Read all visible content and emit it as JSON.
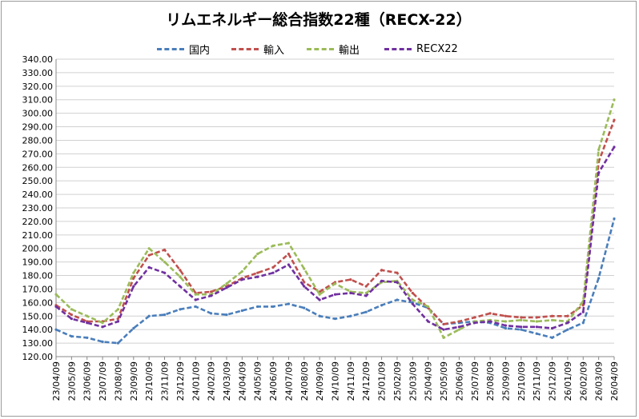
{
  "chart_data": {
    "type": "line",
    "title": "リムエネルギー総合指数22種（RECX-22）",
    "ylim": [
      120,
      340
    ],
    "yticks": [
      "120.00",
      "130.00",
      "140.00",
      "150.00",
      "160.00",
      "170.00",
      "180.00",
      "190.00",
      "200.00",
      "210.00",
      "220.00",
      "230.00",
      "240.00",
      "250.00",
      "260.00",
      "270.00",
      "280.00",
      "290.00",
      "300.00",
      "310.00",
      "320.00",
      "330.00",
      "340.00"
    ],
    "x_labels": [
      "23/04/09",
      "23/05/09",
      "23/06/09",
      "23/07/09",
      "23/08/09",
      "23/09/09",
      "23/10/09",
      "23/11/09",
      "23/12/09",
      "24/01/09",
      "24/02/09",
      "24/03/09",
      "24/04/09",
      "24/05/09",
      "24/06/09",
      "24/07/09",
      "24/08/09",
      "24/09/09",
      "24/10/09",
      "24/11/09",
      "24/12/09",
      "25/01/09",
      "25/02/09",
      "25/03/09",
      "25/04/09",
      "25/05/09",
      "25/06/09",
      "25/07/09",
      "25/08/09",
      "25/09/09",
      "25/10/09",
      "25/11/09",
      "25/12/09",
      "26/01/09",
      "26/02/09",
      "26/03/09",
      "26/04/09"
    ],
    "grid": true,
    "legend_position": "top",
    "series": [
      {
        "name": "国内",
        "color": "#4a7ebb",
        "values": [
          140,
          135,
          134,
          131,
          130,
          141,
          150,
          151,
          155,
          157,
          152,
          151,
          154,
          157,
          157,
          159,
          156,
          150,
          148,
          150,
          153,
          158,
          162,
          160,
          156,
          144,
          145,
          146,
          145,
          141,
          140,
          137,
          134,
          140,
          145,
          178,
          222
        ]
      },
      {
        "name": "輸入",
        "color": "#c0504d",
        "values": [
          158,
          151,
          146,
          146,
          148,
          178,
          195,
          199,
          184,
          167,
          168,
          172,
          178,
          182,
          186,
          196,
          175,
          168,
          175,
          177,
          172,
          184,
          182,
          167,
          156,
          144,
          146,
          149,
          152,
          150,
          149,
          149,
          150,
          150,
          158,
          264,
          295
        ]
      },
      {
        "name": "輸出",
        "color": "#9bbb59",
        "values": [
          166,
          155,
          150,
          145,
          155,
          182,
          200,
          190,
          179,
          166,
          166,
          174,
          183,
          196,
          202,
          204,
          185,
          166,
          174,
          168,
          167,
          175,
          176,
          162,
          157,
          134,
          140,
          146,
          147,
          146,
          147,
          146,
          147,
          146,
          161,
          273,
          310
        ]
      },
      {
        "name": "RECX22",
        "color": "#7030a0",
        "values": [
          157,
          148,
          145,
          142,
          146,
          172,
          186,
          182,
          172,
          162,
          165,
          171,
          177,
          179,
          182,
          188,
          172,
          162,
          166,
          167,
          165,
          176,
          175,
          159,
          146,
          140,
          142,
          145,
          146,
          143,
          142,
          142,
          141,
          145,
          153,
          256,
          275
        ]
      }
    ]
  }
}
